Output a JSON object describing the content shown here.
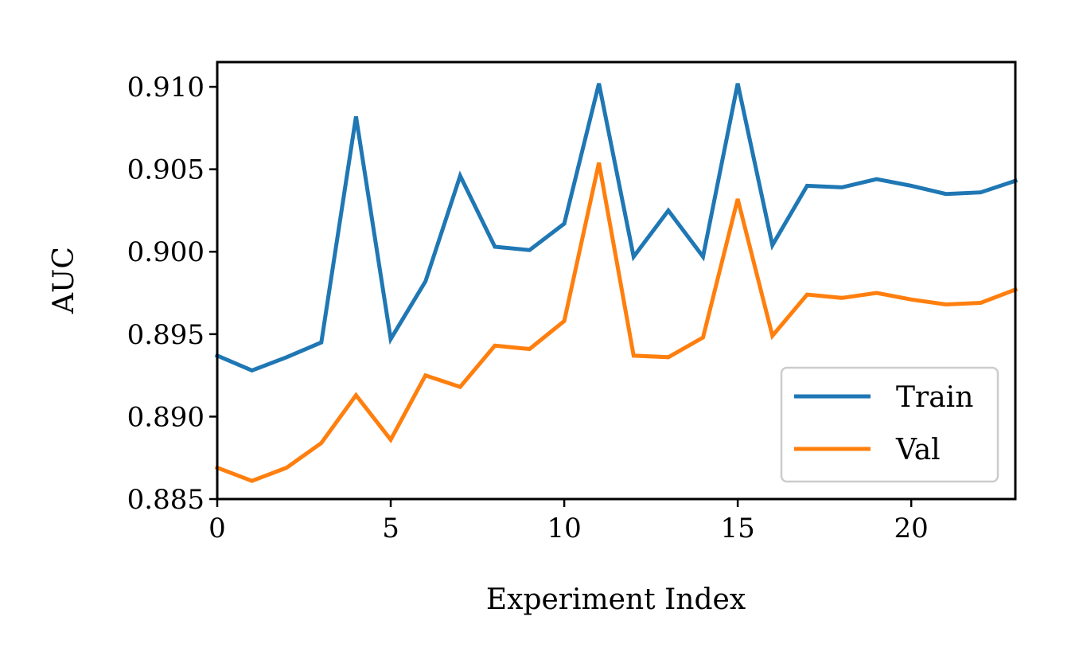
{
  "chart_data": {
    "type": "line",
    "xlabel": "Experiment Index",
    "ylabel": "AUC",
    "xlim": [
      0,
      23
    ],
    "ylim": [
      0.885,
      0.9115
    ],
    "x_ticks": [
      0,
      5,
      10,
      15,
      20
    ],
    "y_ticks": [
      0.885,
      0.89,
      0.895,
      0.9,
      0.905,
      0.91
    ],
    "x_tick_labels": [
      "0",
      "5",
      "10",
      "15",
      "20"
    ],
    "y_tick_labels": [
      "0.885",
      "0.890",
      "0.895",
      "0.900",
      "0.905",
      "0.910"
    ],
    "grid": false,
    "legend_position": "lower-right",
    "x": [
      0,
      1,
      2,
      3,
      4,
      5,
      6,
      7,
      8,
      9,
      10,
      11,
      12,
      13,
      14,
      15,
      16,
      17,
      18,
      19,
      20,
      21,
      22,
      23
    ],
    "series": [
      {
        "name": "Train",
        "color": "#1f77b4",
        "values": [
          0.8937,
          0.8928,
          0.8936,
          0.8945,
          0.9082,
          0.8947,
          0.8982,
          0.9046,
          0.9003,
          0.9001,
          0.9017,
          0.9102,
          0.8997,
          0.9025,
          0.8997,
          0.9102,
          0.9004,
          0.904,
          0.9039,
          0.9044,
          0.904,
          0.9035,
          0.9036,
          0.9043
        ]
      },
      {
        "name": "Val",
        "color": "#ff7f0e",
        "values": [
          0.8869,
          0.8861,
          0.8869,
          0.8884,
          0.8913,
          0.8886,
          0.8925,
          0.8918,
          0.8943,
          0.8941,
          0.8958,
          0.9054,
          0.8937,
          0.8936,
          0.8948,
          0.9032,
          0.8949,
          0.8974,
          0.8972,
          0.8975,
          0.8971,
          0.8968,
          0.8969,
          0.8977
        ]
      }
    ]
  }
}
